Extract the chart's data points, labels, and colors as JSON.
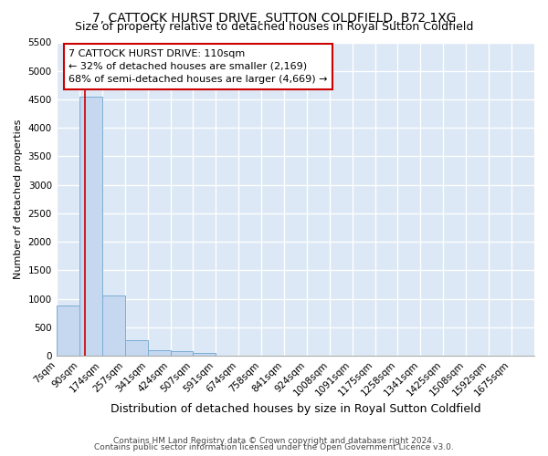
{
  "title": "7, CATTOCK HURST DRIVE, SUTTON COLDFIELD, B72 1XG",
  "subtitle": "Size of property relative to detached houses in Royal Sutton Coldfield",
  "xlabel": "Distribution of detached houses by size in Royal Sutton Coldfield",
  "ylabel": "Number of detached properties",
  "footnote1": "Contains HM Land Registry data © Crown copyright and database right 2024.",
  "footnote2": "Contains public sector information licensed under the Open Government Licence v3.0.",
  "annotation_title": "7 CATTOCK HURST DRIVE: 110sqm",
  "annotation_line2": "← 32% of detached houses are smaller (2,169)",
  "annotation_line3": "68% of semi-detached houses are larger (4,669) →",
  "categories": [
    "7sqm",
    "90sqm",
    "174sqm",
    "257sqm",
    "341sqm",
    "424sqm",
    "507sqm",
    "591sqm",
    "674sqm",
    "758sqm",
    "841sqm",
    "924sqm",
    "1008sqm",
    "1091sqm",
    "1175sqm",
    "1258sqm",
    "1341sqm",
    "1425sqm",
    "1508sqm",
    "1592sqm",
    "1675sqm"
  ],
  "bin_edges": [
    7,
    90,
    174,
    257,
    341,
    424,
    507,
    591,
    674,
    758,
    841,
    924,
    1008,
    1091,
    1175,
    1258,
    1341,
    1425,
    1508,
    1592,
    1675
  ],
  "bin_width": 83,
  "values": [
    880,
    4550,
    1060,
    280,
    90,
    80,
    50,
    0,
    0,
    0,
    0,
    0,
    0,
    0,
    0,
    0,
    0,
    0,
    0,
    0,
    0
  ],
  "bar_color": "#c5d8f0",
  "bar_edge_color": "#7aadd4",
  "vline_color": "#cc0000",
  "vline_x": 110,
  "ylim_max": 5500,
  "yticks": [
    0,
    500,
    1000,
    1500,
    2000,
    2500,
    3000,
    3500,
    4000,
    4500,
    5000,
    5500
  ],
  "fig_bg_color": "#ffffff",
  "plot_bg_color": "#dce8f5",
  "grid_color": "#ffffff",
  "annotation_box_facecolor": "white",
  "annotation_box_edgecolor": "#cc0000",
  "title_fontsize": 10,
  "subtitle_fontsize": 9,
  "ylabel_fontsize": 8,
  "xlabel_fontsize": 9,
  "tick_fontsize": 7.5,
  "annotation_fontsize": 8,
  "footnote_fontsize": 6.5
}
